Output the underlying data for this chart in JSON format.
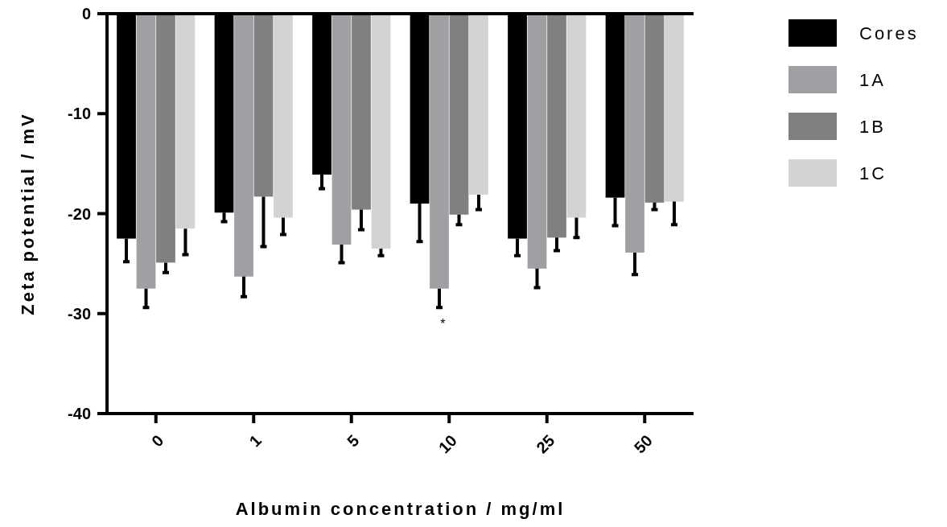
{
  "chart_data": {
    "type": "bar",
    "xlabel": "Albumin concentration / mg/ml",
    "ylabel": "Zeta potential / mV",
    "categories": [
      "0",
      "1",
      "5",
      "10",
      "25",
      "50"
    ],
    "series": [
      {
        "name": "Cores",
        "color": "#000000",
        "values": [
          -22.5,
          -19.9,
          -16.1,
          -19.0,
          -22.5,
          -18.4
        ],
        "errors": [
          [
            -24.8,
            -22.5
          ],
          [
            -20.8,
            -19.9
          ],
          [
            -17.5,
            -16.1
          ],
          [
            -22.8,
            -19.0
          ],
          [
            -24.2,
            -22.5
          ],
          [
            -21.2,
            -18.4
          ]
        ]
      },
      {
        "name": "1A",
        "color": "#a0a0a4",
        "values": [
          -27.5,
          -26.3,
          -23.1,
          -27.5,
          -25.5,
          -23.9
        ],
        "errors": [
          [
            -29.4,
            -27.5
          ],
          [
            -28.3,
            -26.3
          ],
          [
            -24.9,
            -23.1
          ],
          [
            -29.4,
            -27.5
          ],
          [
            -27.4,
            -25.5
          ],
          [
            -26.1,
            -23.9
          ]
        ]
      },
      {
        "name": "1B",
        "color": "#808080",
        "values": [
          -24.9,
          -18.3,
          -19.6,
          -20.1,
          -22.4,
          -18.9
        ],
        "errors": [
          [
            -25.9,
            -24.9
          ],
          [
            -23.3,
            -18.3
          ],
          [
            -21.6,
            -19.6
          ],
          [
            -21.1,
            -20.1
          ],
          [
            -23.7,
            -22.4
          ],
          [
            -19.6,
            -18.9
          ]
        ]
      },
      {
        "name": "1C",
        "color": "#d3d3d3",
        "values": [
          -21.5,
          -20.4,
          -23.5,
          -18.1,
          -20.4,
          -18.8
        ],
        "errors": [
          [
            -24.1,
            -21.5
          ],
          [
            -22.1,
            -20.4
          ],
          [
            -24.2,
            -23.5
          ],
          [
            -19.6,
            -18.1
          ],
          [
            -22.4,
            -20.4
          ],
          [
            -21.1,
            -18.8
          ]
        ]
      }
    ],
    "ylim": [
      -40,
      0
    ],
    "yticks": [
      -40,
      -30,
      -20,
      -10,
      0
    ],
    "grid": false,
    "legend": "top right",
    "annotations": [
      {
        "text": "*",
        "x": "10",
        "y": -27.5
      }
    ]
  }
}
